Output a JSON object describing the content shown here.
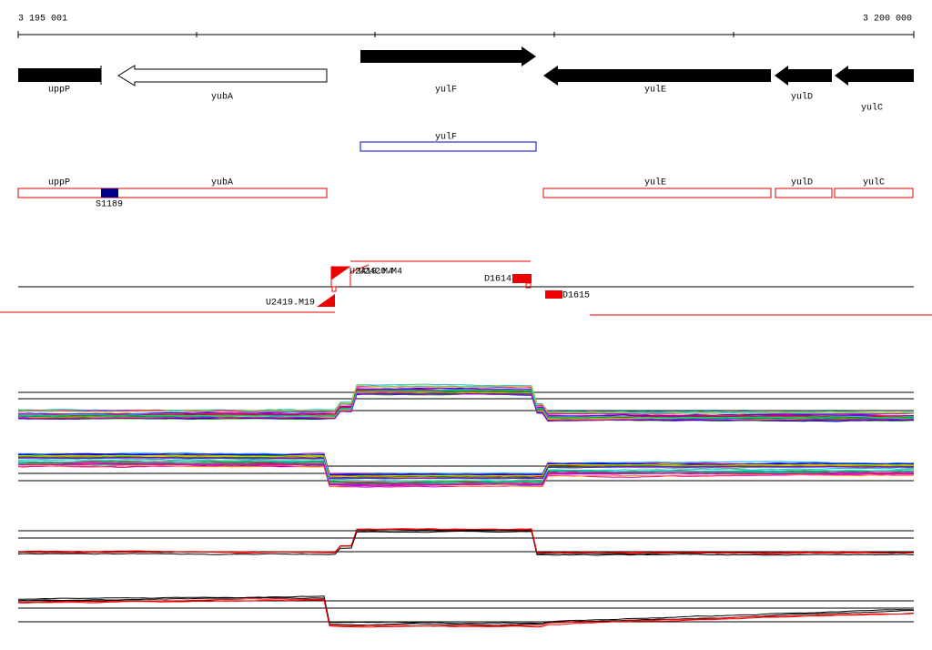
{
  "ruler": {
    "start": "3 195 001",
    "end": "3 200 000"
  },
  "genes": [
    "uppP",
    "yubA",
    "yulF",
    "yulE",
    "yulD",
    "yulC"
  ],
  "orfs": [
    "yulF"
  ],
  "features": [
    "uppP",
    "yubA",
    "S1189",
    "yulE",
    "yulD",
    "yulC"
  ],
  "probes": [
    "U2419.M4",
    "U2420.M4",
    "D1614",
    "U2419.M19",
    "D1615"
  ]
}
